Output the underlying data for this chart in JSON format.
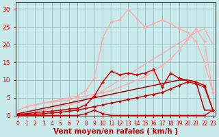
{
  "background_color": "#c8eaea",
  "grid_color": "#99bbbb",
  "x_values": [
    0,
    1,
    2,
    3,
    4,
    5,
    6,
    7,
    8,
    9,
    10,
    11,
    12,
    13,
    14,
    15,
    16,
    17,
    18,
    19,
    20,
    21,
    22,
    23
  ],
  "xlabel": "Vent moyen/en rafales ( km/h )",
  "xlabel_color": "#cc0000",
  "yticks": [
    0,
    5,
    10,
    15,
    20,
    25,
    30
  ],
  "ylim": [
    0,
    32
  ],
  "xlim": [
    -0.3,
    23.3
  ],
  "lines": [
    {
      "y": [
        0.0,
        0.5,
        1.0,
        1.5,
        2.0,
        2.5,
        3.0,
        3.5,
        4.5,
        5.5,
        7.0,
        8.5,
        10.0,
        11.5,
        13.0,
        14.5,
        16.0,
        17.5,
        19.0,
        20.5,
        22.0,
        23.5,
        24.5,
        20.0
      ],
      "color": "#ffaaaa",
      "lw": 1.0,
      "marker": null,
      "ms": 0,
      "zorder": 2
    },
    {
      "y": [
        1.5,
        2.5,
        3.0,
        3.5,
        4.0,
        4.5,
        5.0,
        5.5,
        7.0,
        10.5,
        22.0,
        26.5,
        27.0,
        30.0,
        27.5,
        25.0,
        26.0,
        27.0,
        26.0,
        24.5,
        23.5,
        21.0,
        15.0,
        6.5
      ],
      "color": "#ffaaaa",
      "lw": 1.0,
      "marker": "D",
      "ms": 2.0,
      "zorder": 3
    },
    {
      "y": [
        1.5,
        2.5,
        3.0,
        3.5,
        3.8,
        4.0,
        4.5,
        5.0,
        5.5,
        6.0,
        6.5,
        7.0,
        8.0,
        9.0,
        10.0,
        11.0,
        12.5,
        14.0,
        16.0,
        18.5,
        21.5,
        24.5,
        21.0,
        6.5
      ],
      "color": "#ffaaaa",
      "lw": 1.0,
      "marker": "D",
      "ms": 2.0,
      "zorder": 3
    },
    {
      "y": [
        0.3,
        0.5,
        0.8,
        1.0,
        1.2,
        1.5,
        1.8,
        2.0,
        3.0,
        5.5,
        9.5,
        12.5,
        11.5,
        12.0,
        11.5,
        12.0,
        13.0,
        8.0,
        12.0,
        10.5,
        10.0,
        9.5,
        8.5,
        1.5
      ],
      "color": "#dd0000",
      "lw": 1.1,
      "marker": "D",
      "ms": 2.0,
      "zorder": 6
    },
    {
      "y": [
        0.5,
        1.0,
        1.5,
        2.0,
        2.5,
        3.0,
        3.5,
        4.0,
        4.5,
        5.0,
        5.5,
        6.0,
        6.5,
        7.0,
        7.5,
        8.0,
        8.5,
        9.0,
        9.5,
        10.0,
        10.0,
        9.5,
        1.5,
        1.5
      ],
      "color": "#aa0000",
      "lw": 1.1,
      "marker": null,
      "ms": 0,
      "zorder": 5
    },
    {
      "y": [
        0.0,
        0.0,
        0.0,
        0.0,
        0.0,
        0.0,
        0.0,
        0.0,
        0.5,
        1.5,
        0.5,
        0.0,
        0.0,
        0.0,
        0.0,
        0.0,
        0.0,
        0.0,
        0.0,
        0.0,
        0.0,
        0.0,
        0.0,
        1.5
      ],
      "color": "#cc0000",
      "lw": 1.1,
      "marker": "D",
      "ms": 2.0,
      "zorder": 6
    },
    {
      "y": [
        0.0,
        0.2,
        0.3,
        0.5,
        0.7,
        0.9,
        1.2,
        1.5,
        2.0,
        2.5,
        3.0,
        3.5,
        4.0,
        4.5,
        5.0,
        5.5,
        6.0,
        6.5,
        7.5,
        8.5,
        9.5,
        9.0,
        8.0,
        1.5
      ],
      "color": "#cc0000",
      "lw": 1.1,
      "marker": "D",
      "ms": 2.0,
      "zorder": 6
    }
  ],
  "tick_color": "#cc0000",
  "tick_fontsize": 5.5,
  "xlabel_fontsize": 7.5,
  "ytick_fontsize": 6.5
}
